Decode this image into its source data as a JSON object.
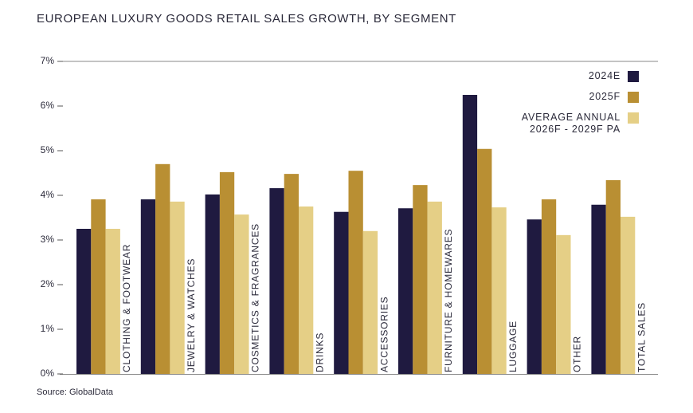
{
  "chart_data": {
    "type": "bar",
    "title": "EUROPEAN LUXURY GOODS RETAIL SALES GROWTH, BY SEGMENT",
    "source": "Source: GlobalData",
    "categories": [
      "CLOTHING & FOOTWEAR",
      "JEWELRY & WATCHES",
      "COSMETICS & FRAGRANCES",
      "DRINKS",
      "ACCESSORIES",
      "FURNITURE & HOMEWARES",
      "LUGGAGE",
      "OTHER",
      "TOTAL SALES"
    ],
    "series": [
      {
        "name": "2024E",
        "color": "#1f1a40",
        "values": [
          3.25,
          3.91,
          4.02,
          4.16,
          3.63,
          3.71,
          6.25,
          3.46,
          3.79
        ]
      },
      {
        "name": "2025F",
        "color": "#b98f33",
        "values": [
          3.91,
          4.7,
          4.52,
          4.48,
          4.55,
          4.23,
          5.04,
          3.91,
          4.34
        ]
      },
      {
        "name": "AVERAGE ANNUAL 2026F - 2029F PA",
        "color": "#e5cf86",
        "values": [
          3.25,
          3.86,
          3.57,
          3.75,
          3.2,
          3.86,
          3.73,
          3.11,
          3.52
        ]
      }
    ],
    "ylim": [
      0,
      7
    ],
    "yticks": [
      {
        "value": 0,
        "label": "0%"
      },
      {
        "value": 1,
        "label": "1%"
      },
      {
        "value": 2,
        "label": "2%"
      },
      {
        "value": 3,
        "label": "3%"
      },
      {
        "value": 4,
        "label": "4%"
      },
      {
        "value": 5,
        "label": "5%"
      },
      {
        "value": 6,
        "label": "6%"
      },
      {
        "value": 7,
        "label": "7%"
      }
    ],
    "legend": "top-right"
  }
}
